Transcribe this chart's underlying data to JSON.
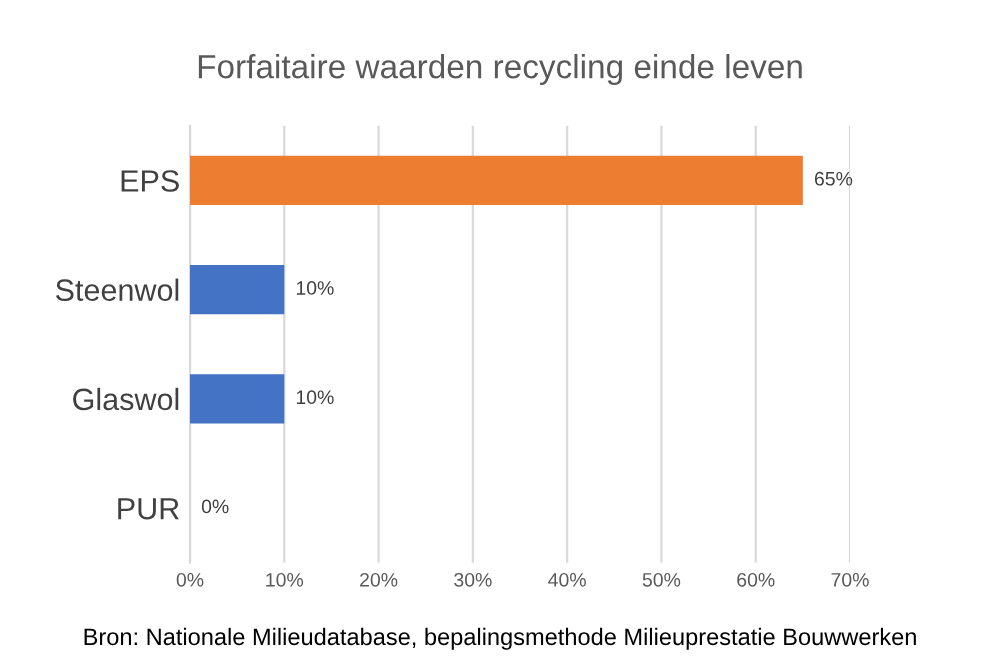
{
  "chart_data": {
    "type": "bar",
    "orientation": "horizontal",
    "title": "Forfaitaire waarden recycling einde leven",
    "categories": [
      "EPS",
      "Steenwol",
      "Glaswol",
      "PUR"
    ],
    "values": [
      65,
      10,
      10,
      0
    ],
    "colors": [
      "#ed7d31",
      "#4472c4",
      "#4472c4",
      "#4472c4"
    ],
    "value_labels": [
      "65%",
      "10%",
      "10%",
      "0%"
    ],
    "xlim": [
      0,
      70
    ],
    "xticks": [
      {
        "value": 0,
        "label": "0%"
      },
      {
        "value": 10,
        "label": "10%"
      },
      {
        "value": 20,
        "label": "20%"
      },
      {
        "value": 30,
        "label": "30%"
      },
      {
        "value": 40,
        "label": "40%"
      },
      {
        "value": 50,
        "label": "50%"
      },
      {
        "value": 60,
        "label": "60%"
      },
      {
        "value": 70,
        "label": "70%"
      }
    ],
    "grid": "x",
    "annotations": [
      "Bron: Nationale Milieudatabase, bepalingsmethode Milieuprestatie Bouwwerken"
    ]
  }
}
